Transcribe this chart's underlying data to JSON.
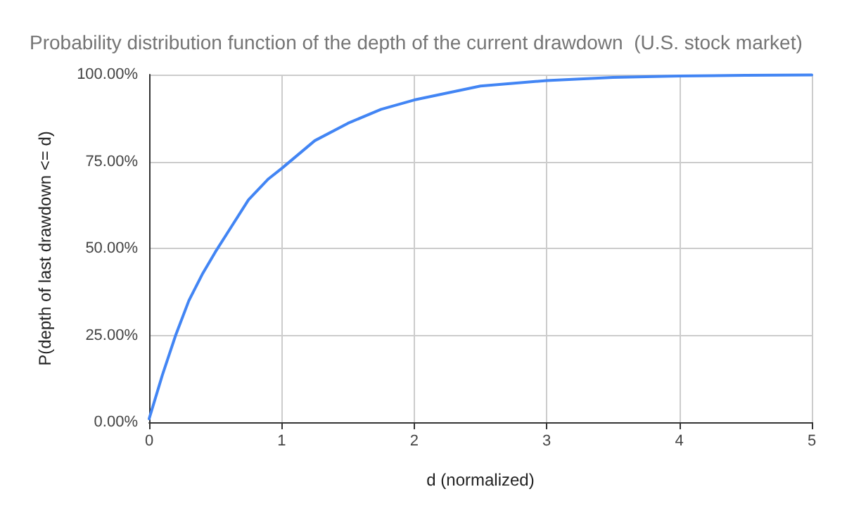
{
  "chart_data": {
    "type": "line",
    "title": "Probability distribution function of the depth of the current drawdown  (U.S. stock market)",
    "xlabel": "d (normalized)",
    "ylabel": "P(depth of last drawdown <= d)",
    "x": [
      0,
      0.1,
      0.2,
      0.3,
      0.4,
      0.5,
      0.6,
      0.75,
      0.9,
      1,
      1.25,
      1.5,
      1.75,
      2,
      2.5,
      3,
      3.5,
      4,
      4.5,
      5
    ],
    "series": [
      {
        "color": "#4285f4",
        "values": [
          1,
          13.6,
          25,
          35,
          42.5,
          49,
          55,
          64,
          70,
          73,
          81,
          86,
          90,
          92.7,
          96.7,
          98.3,
          99.2,
          99.6,
          99.8,
          99.9
        ]
      }
    ],
    "xlim": [
      0,
      5
    ],
    "xticks": [
      0,
      1,
      2,
      3,
      4,
      5
    ],
    "ylim": [
      0,
      100
    ],
    "yticks": [
      {
        "value": 0,
        "label": "0.00%"
      },
      {
        "value": 25,
        "label": "25.00%"
      },
      {
        "value": 50,
        "label": "50.00%"
      },
      {
        "value": 75,
        "label": "75.00%"
      },
      {
        "value": 100,
        "label": "100.00%"
      }
    ],
    "grid": true,
    "marker": "none",
    "line_style": "solid"
  }
}
